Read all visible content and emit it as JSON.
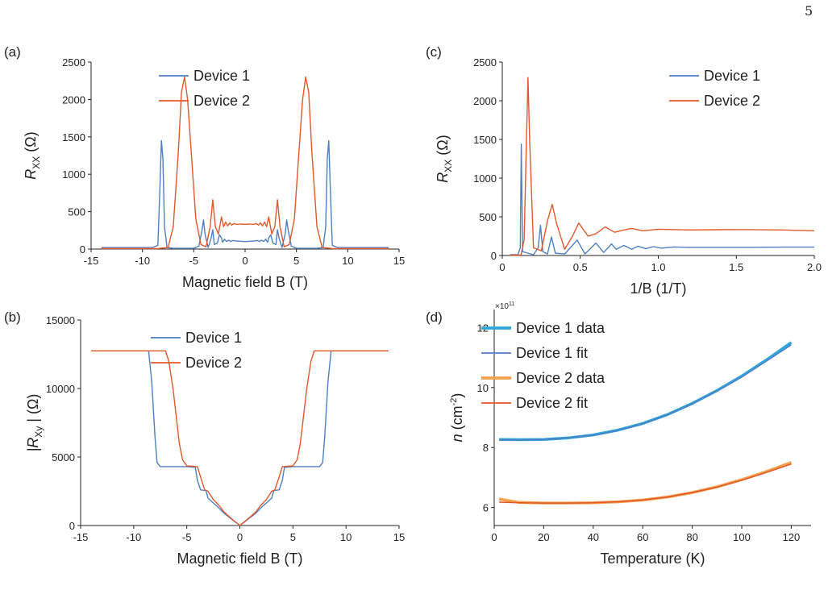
{
  "page_number": "5",
  "colors": {
    "device1": "#4e7fc2",
    "device2": "#e2582a",
    "device1_data": "#2fa6dd",
    "device2_data": "#f2a04a"
  },
  "chart_data": [
    {
      "id": "a",
      "panel_label": "(a)",
      "type": "line",
      "xlabel": "Magnetic field B (T)",
      "ylabel": "R",
      "ylabel_sub": "XX",
      "ylabel_unit": "(Ω)",
      "xlim": [
        -15,
        15
      ],
      "ylim": [
        0,
        2500
      ],
      "xticks": [
        -15,
        -10,
        -5,
        0,
        5,
        10,
        15
      ],
      "yticks": [
        0,
        500,
        1000,
        1500,
        2000,
        2500
      ],
      "xtick_labels": [
        "-15",
        "-10",
        "-5",
        "0",
        "5",
        "10",
        "15"
      ],
      "ytick_labels": [
        "0",
        "500",
        "1000",
        "1500",
        "2000",
        "2500"
      ],
      "legend_position": "top-center",
      "series": [
        {
          "name": "Device 1",
          "color": "#4e7fc2",
          "x": [
            -14,
            -9,
            -8.5,
            -8.3,
            -8.15,
            -8,
            -7.85,
            -7.6,
            -7,
            -5,
            -4.5,
            -4.2,
            -4.05,
            -3.9,
            -3.6,
            -3.3,
            -3.15,
            -3.0,
            -2.7,
            -2.5,
            -2.3,
            -2.2,
            -2.0,
            -1.8,
            -1.6,
            -1.4,
            -1.2,
            -1,
            -0.5,
            0,
            0.5,
            1,
            1.2,
            1.4,
            1.6,
            1.8,
            2.0,
            2.2,
            2.3,
            2.5,
            2.7,
            3.0,
            3.15,
            3.3,
            3.6,
            3.9,
            4.05,
            4.2,
            4.5,
            5,
            7,
            7.6,
            7.85,
            8,
            8.15,
            8.3,
            8.5,
            9,
            14
          ],
          "y": [
            20,
            20,
            50,
            800,
            1450,
            1200,
            300,
            20,
            10,
            10,
            40,
            250,
            390,
            200,
            20,
            150,
            260,
            60,
            80,
            190,
            150,
            90,
            130,
            100,
            120,
            100,
            115,
            110,
            105,
            100,
            105,
            110,
            115,
            100,
            120,
            100,
            130,
            90,
            150,
            190,
            80,
            60,
            260,
            150,
            20,
            200,
            390,
            250,
            40,
            10,
            10,
            20,
            300,
            1200,
            1450,
            800,
            50,
            20,
            20
          ]
        },
        {
          "name": "Device 2",
          "color": "#e2582a",
          "x": [
            -14,
            -8.6,
            -7.5,
            -7.0,
            -6.5,
            -6.2,
            -5.9,
            -5.6,
            -5.2,
            -4.8,
            -4.3,
            -3.8,
            -3.4,
            -3.15,
            -2.9,
            -2.6,
            -2.3,
            -2.1,
            -1.9,
            -1.7,
            -1.5,
            -1.3,
            -1.1,
            -0.8,
            -0.4,
            0,
            0.4,
            0.8,
            1.1,
            1.3,
            1.5,
            1.7,
            1.9,
            2.1,
            2.3,
            2.6,
            2.9,
            3.15,
            3.4,
            3.8,
            4.3,
            4.8,
            5.2,
            5.6,
            5.9,
            6.2,
            6.5,
            7.0,
            7.5,
            8.6,
            14
          ],
          "y": [
            5,
            5,
            20,
            300,
            1300,
            2100,
            2300,
            2000,
            1200,
            400,
            60,
            30,
            300,
            660,
            300,
            200,
            430,
            300,
            360,
            310,
            350,
            320,
            340,
            330,
            335,
            330,
            335,
            330,
            340,
            320,
            350,
            310,
            360,
            300,
            430,
            200,
            300,
            660,
            300,
            30,
            60,
            400,
            1200,
            2000,
            2300,
            2100,
            1300,
            300,
            20,
            5,
            5
          ]
        }
      ]
    },
    {
      "id": "b",
      "panel_label": "(b)",
      "type": "line",
      "xlabel": "Magnetic field B (T)",
      "ylabel": "|R",
      "ylabel_sub": "Xy",
      "ylabel_unit": "| (Ω)",
      "xlim": [
        -15,
        15
      ],
      "ylim": [
        0,
        15000
      ],
      "xticks": [
        -15,
        -10,
        -5,
        0,
        5,
        10,
        15
      ],
      "yticks": [
        0,
        5000,
        10000,
        15000
      ],
      "xtick_labels": [
        "-15",
        "-10",
        "-5",
        "0",
        "5",
        "10",
        "15"
      ],
      "ytick_labels": [
        "0",
        "5000",
        "10000",
        "15000"
      ],
      "legend_position": "top-center",
      "series": [
        {
          "name": "Device 1",
          "color": "#4e7fc2",
          "x": [
            -14,
            -8.6,
            -8.3,
            -8.0,
            -7.8,
            -7.5,
            -5,
            -4.2,
            -4.0,
            -3.7,
            -3.2,
            -3.0,
            -2.5,
            -2.0,
            -1.5,
            -1.0,
            -0.5,
            0,
            0.5,
            1.0,
            1.5,
            2.0,
            2.5,
            3.0,
            3.2,
            3.7,
            4.0,
            4.2,
            5,
            7.5,
            7.8,
            8.0,
            8.3,
            8.6,
            14
          ],
          "y": [
            12750,
            12750,
            10500,
            6500,
            4600,
            4300,
            4300,
            4250,
            3300,
            2600,
            2550,
            2000,
            1650,
            1300,
            900,
            600,
            300,
            0,
            300,
            600,
            900,
            1300,
            1650,
            2000,
            2550,
            2600,
            3300,
            4250,
            4300,
            4300,
            4600,
            6500,
            10500,
            12750,
            12750
          ]
        },
        {
          "name": "Device 2",
          "color": "#e2582a",
          "x": [
            -14,
            -7.0,
            -6.7,
            -6.3,
            -6.0,
            -5.7,
            -5.4,
            -5.0,
            -4.0,
            -3.6,
            -3.3,
            -3.0,
            -2.5,
            -2.0,
            -1.5,
            -1.0,
            -0.5,
            0,
            0.5,
            1.0,
            1.5,
            2.0,
            2.5,
            3.0,
            3.3,
            3.6,
            4.0,
            5.0,
            5.4,
            5.7,
            6.0,
            6.3,
            6.7,
            7.0,
            14
          ],
          "y": [
            12750,
            12750,
            12000,
            10000,
            8000,
            6000,
            4800,
            4350,
            4300,
            3300,
            2600,
            2500,
            1900,
            1500,
            1000,
            650,
            320,
            0,
            320,
            650,
            1000,
            1500,
            1900,
            2500,
            2600,
            3300,
            4300,
            4350,
            4800,
            6000,
            8000,
            10000,
            12000,
            12750,
            12750
          ]
        }
      ]
    },
    {
      "id": "c",
      "panel_label": "(c)",
      "type": "line",
      "xlabel": "1/B (1/T)",
      "ylabel": "R",
      "ylabel_sub": "XX",
      "ylabel_unit": "(Ω)",
      "xlim": [
        0,
        2
      ],
      "ylim": [
        0,
        2500
      ],
      "xticks": [
        0,
        0.5,
        1,
        1.5,
        2
      ],
      "yticks": [
        0,
        500,
        1000,
        1500,
        2000,
        2500
      ],
      "xtick_labels": [
        "0",
        "0.5",
        "1.0",
        "1.5",
        "2.0"
      ],
      "ytick_labels": [
        "0",
        "500",
        "1000",
        "1500",
        "2000",
        "2500"
      ],
      "legend_position": "top-right",
      "series": [
        {
          "name": "Device 1",
          "color": "#4e7fc2",
          "x": [
            0.05,
            0.1,
            0.115,
            0.122,
            0.13,
            0.2,
            0.23,
            0.245,
            0.26,
            0.29,
            0.315,
            0.34,
            0.4,
            0.48,
            0.53,
            0.55,
            0.6,
            0.65,
            0.7,
            0.73,
            0.78,
            0.83,
            0.87,
            0.92,
            0.97,
            1.02,
            1.1,
            1.2,
            1.4,
            1.6,
            1.8,
            2.0
          ],
          "y": [
            10,
            10,
            100,
            1440,
            50,
            10,
            100,
            390,
            50,
            20,
            240,
            30,
            20,
            200,
            20,
            60,
            160,
            40,
            150,
            80,
            130,
            80,
            120,
            90,
            115,
            95,
            110,
            105,
            105,
            105,
            108,
            108
          ]
        },
        {
          "name": "Device 2",
          "color": "#e2582a",
          "x": [
            0.05,
            0.12,
            0.14,
            0.155,
            0.165,
            0.175,
            0.2,
            0.25,
            0.29,
            0.32,
            0.35,
            0.4,
            0.45,
            0.49,
            0.55,
            0.6,
            0.66,
            0.72,
            0.78,
            0.83,
            0.9,
            1.0,
            1.2,
            1.5,
            1.8,
            2.0
          ],
          "y": [
            5,
            5,
            200,
            1500,
            2300,
            1500,
            100,
            60,
            450,
            660,
            400,
            80,
            250,
            420,
            250,
            280,
            370,
            300,
            330,
            350,
            320,
            340,
            330,
            335,
            330,
            320
          ]
        }
      ]
    },
    {
      "id": "d",
      "panel_label": "(d)",
      "type": "line",
      "xlabel": "Temperature (K)",
      "ylabel": "n",
      "ylabel_unit": "(cm",
      "ylabel_sup": "-2",
      "ylabel_close": ")",
      "exponent_label": "×10",
      "exponent_power": "11",
      "xlim": [
        0,
        128
      ],
      "ylim": [
        5.4,
        12.6
      ],
      "xticks": [
        0,
        20,
        40,
        60,
        80,
        100,
        120
      ],
      "yticks": [
        6,
        8,
        10,
        12
      ],
      "xtick_labels": [
        "0",
        "20",
        "40",
        "60",
        "80",
        "100",
        "120"
      ],
      "ytick_labels": [
        "6",
        "8",
        "10",
        "12"
      ],
      "legend_position": "top-left",
      "series": [
        {
          "name": "Device 1 data",
          "color": "#2fa6dd",
          "width": 3.5,
          "x": [
            2,
            10,
            20,
            30,
            40,
            50,
            60,
            70,
            80,
            90,
            100,
            110,
            120
          ],
          "y": [
            8.27,
            8.26,
            8.27,
            8.32,
            8.42,
            8.58,
            8.8,
            9.1,
            9.47,
            9.9,
            10.38,
            10.92,
            11.5
          ]
        },
        {
          "name": "Device 1 fit",
          "color": "#4e7fc2",
          "width": 1.5,
          "x": [
            2,
            10,
            20,
            30,
            40,
            50,
            60,
            70,
            80,
            90,
            100,
            110,
            120
          ],
          "y": [
            8.25,
            8.25,
            8.27,
            8.32,
            8.41,
            8.57,
            8.79,
            9.09,
            9.46,
            9.88,
            10.35,
            10.88,
            11.42
          ]
        },
        {
          "name": "Device 2 data",
          "color": "#f2a04a",
          "width": 3.5,
          "x": [
            2,
            10,
            20,
            30,
            40,
            50,
            60,
            70,
            80,
            90,
            100,
            110,
            120
          ],
          "y": [
            6.28,
            6.17,
            6.15,
            6.15,
            6.16,
            6.19,
            6.25,
            6.35,
            6.5,
            6.69,
            6.93,
            7.2,
            7.5
          ]
        },
        {
          "name": "Device 2 fit",
          "color": "#e2582a",
          "width": 1.5,
          "x": [
            2,
            10,
            20,
            30,
            40,
            50,
            60,
            70,
            80,
            90,
            100,
            110,
            120
          ],
          "y": [
            6.18,
            6.16,
            6.15,
            6.15,
            6.16,
            6.19,
            6.25,
            6.35,
            6.5,
            6.68,
            6.91,
            7.17,
            7.45
          ]
        }
      ]
    }
  ]
}
